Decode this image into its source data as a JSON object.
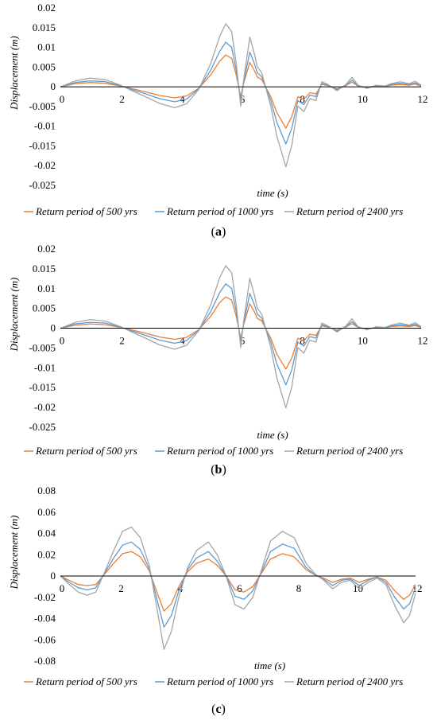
{
  "colors": {
    "s500": "#ED7D31",
    "s1000": "#5B9BD5",
    "s2400": "#A5A5A5",
    "axis": "#000000"
  },
  "captions": [
    "a",
    "b",
    "c"
  ],
  "chart_data": [
    {
      "type": "line",
      "title": "",
      "xlabel": "time (s)",
      "ylabel": "Displacement (m)",
      "xlim": [
        0,
        12
      ],
      "ylim": [
        -0.025,
        0.02
      ],
      "xticks": [
        "0",
        "2",
        "4",
        "6",
        "8",
        "10",
        "12"
      ],
      "yticks": [
        "0.02",
        "0.015",
        "0.01",
        "0.005",
        "0",
        "-0.005",
        "-0.01",
        "-0.015",
        "-0.02",
        "-0.025"
      ],
      "legend_position": "bottom",
      "x": [
        0,
        0.5,
        1,
        1.5,
        2,
        2.3,
        2.8,
        3.3,
        3.8,
        4.2,
        4.6,
        5,
        5.3,
        5.5,
        5.7,
        5.85,
        6,
        6.1,
        6.3,
        6.45,
        6.55,
        6.7,
        7,
        7.2,
        7.5,
        7.7,
        7.9,
        8.1,
        8.3,
        8.5,
        8.7,
        8.9,
        9.2,
        9.5,
        9.7,
        9.9,
        10.2,
        10.5,
        10.8,
        11,
        11.3,
        11.6,
        11.8,
        12
      ],
      "series": [
        {
          "name": "Return period of 500 yrs",
          "color_key": "s500",
          "values": [
            0,
            0.0008,
            0.0011,
            0.0009,
            0.0002,
            -0.0003,
            -0.0012,
            -0.0022,
            -0.0028,
            -0.0023,
            -0.0004,
            0.003,
            0.0065,
            0.0081,
            0.0072,
            0.003,
            -0.0025,
            0.001,
            0.0062,
            0.0042,
            0.0025,
            0.0018,
            -0.0025,
            -0.0065,
            -0.0105,
            -0.0075,
            -0.0025,
            -0.0032,
            -0.0015,
            -0.0018,
            0.0006,
            0.0003,
            -0.0005,
            0.0003,
            0.0012,
            0.0002,
            -0.0002,
            0.0002,
            0.0001,
            0.0004,
            0.0006,
            0.0004,
            0.0007,
            0.0002
          ]
        },
        {
          "name": "Return period of 1000 yrs",
          "color_key": "s1000",
          "values": [
            0,
            0.0011,
            0.0015,
            0.0013,
            0.0003,
            -0.0005,
            -0.0017,
            -0.003,
            -0.0038,
            -0.0031,
            -0.0005,
            0.0042,
            0.009,
            0.0113,
            0.01,
            0.0042,
            -0.0035,
            0.0014,
            0.0088,
            0.006,
            0.0036,
            0.0025,
            -0.0035,
            -0.009,
            -0.0145,
            -0.0105,
            -0.0035,
            -0.0045,
            -0.0021,
            -0.0025,
            0.0009,
            0.0004,
            -0.0007,
            0.0004,
            0.0017,
            0.0003,
            -0.0003,
            0.0003,
            0.0001,
            0.0006,
            0.0009,
            0.0006,
            0.001,
            0.0003
          ]
        },
        {
          "name": "Return period of 2400 yrs",
          "color_key": "s2400",
          "values": [
            0,
            0.0015,
            0.0022,
            0.0018,
            0.0004,
            -0.0007,
            -0.0024,
            -0.0042,
            -0.0053,
            -0.0043,
            -0.0007,
            0.0059,
            0.0128,
            0.016,
            0.014,
            0.006,
            -0.0049,
            0.002,
            0.0126,
            0.0085,
            0.0051,
            0.0035,
            -0.0049,
            -0.0125,
            -0.0203,
            -0.0148,
            -0.0049,
            -0.0063,
            -0.003,
            -0.0035,
            0.0013,
            0.0006,
            -0.001,
            0.0006,
            0.0024,
            0.0004,
            -0.0004,
            0.0004,
            0.0002,
            0.0008,
            0.0013,
            0.0008,
            0.0014,
            0.0004
          ]
        }
      ]
    },
    {
      "type": "line",
      "title": "",
      "xlabel": "time (s)",
      "ylabel": "Displacement (m)",
      "xlim": [
        0,
        12
      ],
      "ylim": [
        -0.025,
        0.02
      ],
      "xticks": [
        "0",
        "2",
        "4",
        "6",
        "8",
        "10",
        "12"
      ],
      "yticks": [
        "0.02",
        "0.015",
        "0.01",
        "0.005",
        "0",
        "-0.005",
        "-0.01",
        "-0.015",
        "-0.02",
        "-0.025"
      ],
      "legend_position": "bottom",
      "x": [
        0,
        0.5,
        1,
        1.5,
        2,
        2.3,
        2.8,
        3.3,
        3.8,
        4.2,
        4.6,
        5,
        5.3,
        5.5,
        5.7,
        5.85,
        6,
        6.1,
        6.3,
        6.45,
        6.55,
        6.7,
        7,
        7.2,
        7.5,
        7.7,
        7.9,
        8.1,
        8.3,
        8.5,
        8.7,
        8.9,
        9.2,
        9.5,
        9.7,
        9.9,
        10.2,
        10.5,
        10.8,
        11,
        11.3,
        11.6,
        11.8,
        12
      ],
      "series": [
        {
          "name": "Return period of 500 yrs",
          "color_key": "s500",
          "values": [
            0,
            0.0008,
            0.0011,
            0.0009,
            0.0002,
            -0.0003,
            -0.0012,
            -0.0022,
            -0.0028,
            -0.0023,
            -0.0004,
            0.003,
            0.0065,
            0.0079,
            0.0071,
            0.003,
            -0.0025,
            0.001,
            0.0062,
            0.0042,
            0.0025,
            0.0018,
            -0.0025,
            -0.0065,
            -0.0103,
            -0.0075,
            -0.0025,
            -0.0032,
            -0.0015,
            -0.0018,
            0.0006,
            0.0003,
            -0.0005,
            0.0003,
            0.0012,
            0.0002,
            -0.0002,
            0.0002,
            0.0001,
            0.0004,
            0.0006,
            0.0004,
            0.0007,
            0.0002
          ]
        },
        {
          "name": "Return period of 1000 yrs",
          "color_key": "s1000",
          "values": [
            0,
            0.0011,
            0.0015,
            0.0013,
            0.0003,
            -0.0005,
            -0.0017,
            -0.003,
            -0.0038,
            -0.0031,
            -0.0005,
            0.0042,
            0.009,
            0.0112,
            0.01,
            0.0042,
            -0.0035,
            0.0014,
            0.0088,
            0.006,
            0.0036,
            0.0025,
            -0.0035,
            -0.009,
            -0.0143,
            -0.0105,
            -0.0035,
            -0.0045,
            -0.0021,
            -0.0025,
            0.0009,
            0.0004,
            -0.0007,
            0.0004,
            0.0017,
            0.0003,
            -0.0003,
            0.0003,
            0.0001,
            0.0006,
            0.0009,
            0.0006,
            0.001,
            0.0003
          ]
        },
        {
          "name": "Return period of 2400 yrs",
          "color_key": "s2400",
          "values": [
            0,
            0.0015,
            0.0022,
            0.0018,
            0.0004,
            -0.0007,
            -0.0024,
            -0.0042,
            -0.0053,
            -0.0043,
            -0.0007,
            0.0059,
            0.0128,
            0.0158,
            0.014,
            0.006,
            -0.0049,
            0.002,
            0.0126,
            0.0085,
            0.0051,
            0.0035,
            -0.0049,
            -0.0125,
            -0.0201,
            -0.0148,
            -0.0049,
            -0.0063,
            -0.003,
            -0.0035,
            0.0013,
            0.0006,
            -0.001,
            0.0006,
            0.0024,
            0.0004,
            -0.0004,
            0.0004,
            0.0002,
            0.0008,
            0.0013,
            0.0008,
            0.0014,
            0.0004
          ]
        }
      ]
    },
    {
      "type": "line",
      "title": "",
      "xlabel": "time (s)",
      "ylabel": "Displacement (m)",
      "xlim": [
        0,
        12
      ],
      "ylim": [
        -0.08,
        0.08
      ],
      "xticks": [
        "0",
        "2",
        "4",
        "6",
        "8",
        "10",
        "12"
      ],
      "yticks": [
        "0.08",
        "0.06",
        "0.04",
        "0.02",
        "0",
        "-0.02",
        "-0.04",
        "-0.06",
        "-0.08"
      ],
      "legend_position": "bottom",
      "x": [
        0,
        0.3,
        0.6,
        0.9,
        1.2,
        1.5,
        1.8,
        2.1,
        2.4,
        2.7,
        3,
        3.3,
        3.5,
        3.75,
        4,
        4.3,
        4.6,
        5,
        5.3,
        5.6,
        5.9,
        6.2,
        6.5,
        6.8,
        7.1,
        7.5,
        7.9,
        8.3,
        8.6,
        8.9,
        9.2,
        9.5,
        9.8,
        10.1,
        10.4,
        10.7,
        11,
        11.3,
        11.6,
        11.8,
        12
      ],
      "series": [
        {
          "name": "Return period of 500 yrs",
          "color_key": "s500",
          "values": [
            0,
            -0.004,
            -0.008,
            -0.009,
            -0.008,
            0.002,
            0.012,
            0.021,
            0.023,
            0.018,
            0.005,
            -0.018,
            -0.033,
            -0.026,
            -0.01,
            0.004,
            0.012,
            0.016,
            0.01,
            0.0,
            -0.013,
            -0.015,
            -0.01,
            0.003,
            0.016,
            0.021,
            0.018,
            0.006,
            0.001,
            -0.002,
            -0.006,
            -0.003,
            -0.002,
            -0.006,
            -0.003,
            -0.001,
            -0.004,
            -0.014,
            -0.022,
            -0.018,
            -0.008
          ]
        },
        {
          "name": "Return period of 1000 yrs",
          "color_key": "s1000",
          "values": [
            0,
            -0.006,
            -0.011,
            -0.013,
            -0.011,
            0.003,
            0.017,
            0.029,
            0.032,
            0.025,
            0.007,
            -0.026,
            -0.048,
            -0.037,
            -0.014,
            0.006,
            0.017,
            0.023,
            0.014,
            0.0,
            -0.019,
            -0.022,
            -0.014,
            0.004,
            0.023,
            0.03,
            0.026,
            0.008,
            0.001,
            -0.003,
            -0.009,
            -0.004,
            -0.003,
            -0.009,
            -0.004,
            -0.001,
            -0.006,
            -0.02,
            -0.031,
            -0.026,
            -0.011
          ]
        },
        {
          "name": "Return period of 2400 yrs",
          "color_key": "s2400",
          "values": [
            0,
            -0.008,
            -0.015,
            -0.018,
            -0.015,
            0.004,
            0.024,
            0.042,
            0.046,
            0.036,
            0.01,
            -0.036,
            -0.069,
            -0.052,
            -0.02,
            0.008,
            0.024,
            0.032,
            0.02,
            0.0,
            -0.027,
            -0.031,
            -0.02,
            0.006,
            0.033,
            0.042,
            0.036,
            0.012,
            0.002,
            -0.004,
            -0.012,
            -0.006,
            -0.004,
            -0.012,
            -0.006,
            -0.002,
            -0.008,
            -0.028,
            -0.044,
            -0.037,
            -0.016
          ]
        }
      ]
    }
  ]
}
